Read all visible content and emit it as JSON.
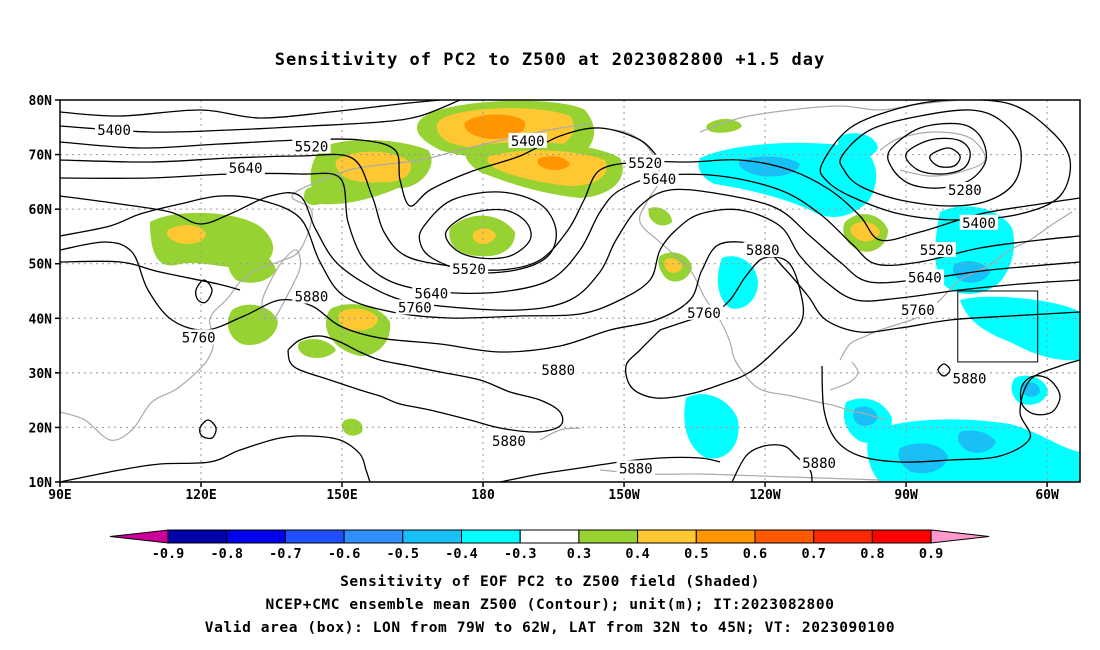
{
  "title": "Sensitivity of PC2 to Z500 at 2023082800 +1.5 day",
  "lat_labels": [
    "80N",
    "70N",
    "60N",
    "50N",
    "40N",
    "30N",
    "20N",
    "10N"
  ],
  "lon_labels": [
    "90E",
    "120E",
    "150E",
    "180",
    "150W",
    "120W",
    "90W",
    "60W"
  ],
  "contour_labels": [
    {
      "text": "5400",
      "lon": 101.5,
      "lat": 74.5
    },
    {
      "text": "5520",
      "lon": 143.5,
      "lat": 71.5
    },
    {
      "text": "5640",
      "lon": 129.5,
      "lat": 67.5
    },
    {
      "text": "5400",
      "lon": -170.5,
      "lat": 72.5
    },
    {
      "text": "5520",
      "lon": -145.5,
      "lat": 68.5
    },
    {
      "text": "5640",
      "lon": -142.5,
      "lat": 65.5
    },
    {
      "text": "5280",
      "lon": -77.5,
      "lat": 63.5
    },
    {
      "text": "5400",
      "lon": -74.5,
      "lat": 57.5
    },
    {
      "text": "5520",
      "lon": -83.5,
      "lat": 52.5
    },
    {
      "text": "5640",
      "lon": -86.0,
      "lat": 47.5
    },
    {
      "text": "5760",
      "lon": -87.5,
      "lat": 41.5
    },
    {
      "text": "5880",
      "lon": -120.5,
      "lat": 52.5
    },
    {
      "text": "5520",
      "lon": -183.0,
      "lat": 49.0
    },
    {
      "text": "5640",
      "lon": -191.0,
      "lat": 44.5
    },
    {
      "text": "5760",
      "lon": -194.5,
      "lat": 42.0
    },
    {
      "text": "5880",
      "lon": 143.5,
      "lat": 44.0
    },
    {
      "text": "5760",
      "lon": 119.5,
      "lat": 36.5
    },
    {
      "text": "5760",
      "lon": -133.0,
      "lat": 41.0
    },
    {
      "text": "5880",
      "lon": -164.0,
      "lat": 30.5
    },
    {
      "text": "5880",
      "lon": -76.5,
      "lat": 29.0
    },
    {
      "text": "5880",
      "lon": -174.5,
      "lat": 17.5
    },
    {
      "text": "5880",
      "lon": -147.5,
      "lat": 12.5
    },
    {
      "text": "5880",
      "lon": -108.5,
      "lat": 13.5
    }
  ],
  "colorbar": {
    "labels": [
      "-0.9",
      "-0.8",
      "-0.7",
      "-0.6",
      "-0.5",
      "-0.4",
      "-0.3",
      "0.3",
      "0.4",
      "0.5",
      "0.6",
      "0.7",
      "0.8",
      "0.9"
    ],
    "colors": [
      "#cc0099",
      "#0000aa",
      "#0000ee",
      "#1f4fff",
      "#2f8fff",
      "#19bff7",
      "#00ffff",
      "#ffffff",
      "#96d232",
      "#ffc832",
      "#ff9600",
      "#ff5a00",
      "#ff2800",
      "#ff0000",
      "#ff99cc"
    ]
  },
  "valid_box": {
    "lon_min": -79,
    "lon_max": -62,
    "lat_min": 32,
    "lat_max": 45
  },
  "caption_lines": [
    "Sensitivity of EOF PC2 to Z500 field (Shaded)",
    "NCEP+CMC ensemble mean Z500 (Contour); unit(m); IT:2023082800",
    "Valid area (box): LON from 79W to 62W, LAT from 32N to 45N; VT: 2023090100"
  ]
}
